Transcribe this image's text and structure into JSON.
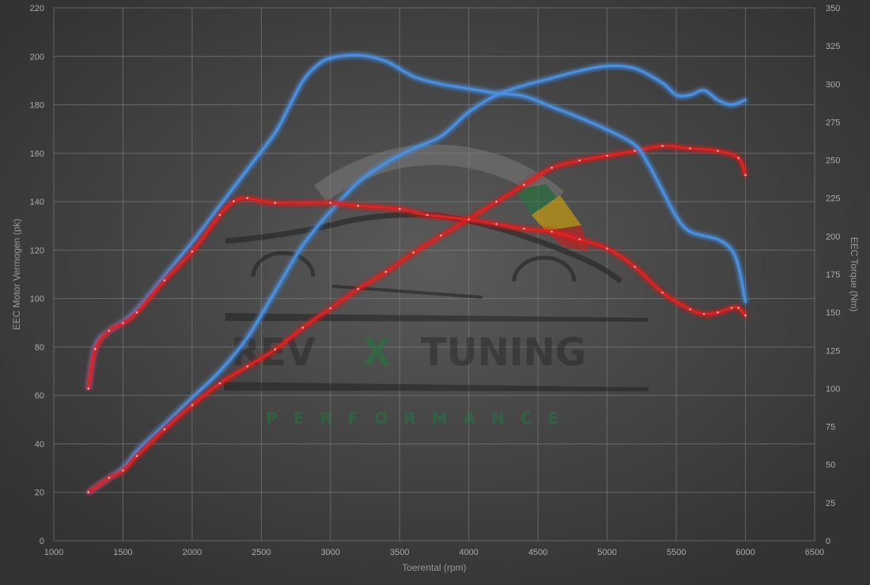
{
  "chart_data": {
    "type": "line",
    "xlabel": "Toerental (rpm)",
    "ylabel_left": "EEC Motor Vermogen (pk)",
    "ylabel_right": "EEC Torque (Nm)",
    "xlim": [
      1000,
      6500
    ],
    "ylim_left": [
      0,
      220
    ],
    "ylim_right": [
      0,
      350
    ],
    "x_ticks": [
      "1000",
      "1500",
      "2000",
      "2500",
      "3000",
      "3500",
      "4000",
      "4500",
      "5000",
      "5500",
      "6000",
      "6500"
    ],
    "y_left_ticks": [
      "0",
      "20",
      "40",
      "60",
      "80",
      "100",
      "120",
      "140",
      "160",
      "180",
      "200",
      "220"
    ],
    "y_right_ticks": [
      "0",
      "25",
      "50",
      "75",
      "100",
      "125",
      "150",
      "175",
      "200",
      "225",
      "250",
      "275",
      "300",
      "325",
      "350"
    ],
    "grid": true,
    "series": [
      {
        "color": "#4a90e2",
        "axis": "left",
        "kind": "power",
        "points": [
          [
            1250,
            20
          ],
          [
            1400,
            26
          ],
          [
            1500,
            30
          ],
          [
            1600,
            37
          ],
          [
            1800,
            48
          ],
          [
            2000,
            59
          ],
          [
            2200,
            70
          ],
          [
            2400,
            84
          ],
          [
            2600,
            103
          ],
          [
            2800,
            122
          ],
          [
            3000,
            136
          ],
          [
            3200,
            148
          ],
          [
            3400,
            156
          ],
          [
            3600,
            162
          ],
          [
            3800,
            167
          ],
          [
            4000,
            177
          ],
          [
            4200,
            184
          ],
          [
            4400,
            188
          ],
          [
            4600,
            191
          ],
          [
            4800,
            194
          ],
          [
            5000,
            196
          ],
          [
            5200,
            195
          ],
          [
            5400,
            189
          ],
          [
            5500,
            184
          ],
          [
            5600,
            184
          ],
          [
            5700,
            186
          ],
          [
            5800,
            182
          ],
          [
            5900,
            180
          ],
          [
            6000,
            182
          ]
        ]
      },
      {
        "color": "#e02020",
        "axis": "left",
        "kind": "power",
        "points": [
          [
            1250,
            20
          ],
          [
            1400,
            26
          ],
          [
            1500,
            29
          ],
          [
            1600,
            35
          ],
          [
            1800,
            46
          ],
          [
            2000,
            56
          ],
          [
            2200,
            65
          ],
          [
            2400,
            72
          ],
          [
            2600,
            79
          ],
          [
            2800,
            88
          ],
          [
            3000,
            96
          ],
          [
            3200,
            104
          ],
          [
            3400,
            111
          ],
          [
            3600,
            119
          ],
          [
            3800,
            126
          ],
          [
            4000,
            133
          ],
          [
            4200,
            140
          ],
          [
            4400,
            147
          ],
          [
            4600,
            154
          ],
          [
            4800,
            157
          ],
          [
            5000,
            159
          ],
          [
            5200,
            161
          ],
          [
            5400,
            163
          ],
          [
            5600,
            162
          ],
          [
            5800,
            161
          ],
          [
            5950,
            158
          ],
          [
            6000,
            151
          ]
        ]
      },
      {
        "color": "#4a90e2",
        "axis": "right",
        "kind": "torque",
        "points": [
          [
            1250,
            100
          ],
          [
            1300,
            128
          ],
          [
            1400,
            138
          ],
          [
            1500,
            144
          ],
          [
            1600,
            152
          ],
          [
            1800,
            174
          ],
          [
            2000,
            196
          ],
          [
            2200,
            220
          ],
          [
            2400,
            244
          ],
          [
            2600,
            268
          ],
          [
            2700,
            285
          ],
          [
            2800,
            302
          ],
          [
            2900,
            312
          ],
          [
            3000,
            317
          ],
          [
            3200,
            319
          ],
          [
            3400,
            315
          ],
          [
            3600,
            305
          ],
          [
            3800,
            300
          ],
          [
            4000,
            297
          ],
          [
            4200,
            294
          ],
          [
            4400,
            292
          ],
          [
            4600,
            285
          ],
          [
            4800,
            278
          ],
          [
            5000,
            270
          ],
          [
            5200,
            260
          ],
          [
            5300,
            247
          ],
          [
            5400,
            230
          ],
          [
            5500,
            213
          ],
          [
            5600,
            203
          ],
          [
            5800,
            198
          ],
          [
            5900,
            191
          ],
          [
            5950,
            180
          ],
          [
            6000,
            157
          ]
        ]
      },
      {
        "color": "#e02020",
        "axis": "right",
        "kind": "torque",
        "points": [
          [
            1250,
            100
          ],
          [
            1300,
            126
          ],
          [
            1400,
            138
          ],
          [
            1500,
            143
          ],
          [
            1600,
            150
          ],
          [
            1800,
            171
          ],
          [
            2000,
            190
          ],
          [
            2200,
            214
          ],
          [
            2300,
            223
          ],
          [
            2400,
            225
          ],
          [
            2600,
            222
          ],
          [
            3000,
            222
          ],
          [
            3200,
            220
          ],
          [
            3500,
            218
          ],
          [
            3700,
            214
          ],
          [
            4000,
            211
          ],
          [
            4200,
            208
          ],
          [
            4400,
            205
          ],
          [
            4600,
            203
          ],
          [
            4800,
            198
          ],
          [
            5000,
            192
          ],
          [
            5200,
            180
          ],
          [
            5400,
            163
          ],
          [
            5600,
            152
          ],
          [
            5700,
            149
          ],
          [
            5800,
            150
          ],
          [
            5900,
            153
          ],
          [
            5950,
            153
          ],
          [
            6000,
            148
          ]
        ]
      }
    ]
  },
  "watermark": {
    "brand_left": "REV",
    "brand_mid": "X",
    "brand_right": "TUNING",
    "tagline": "PERFORMANCE",
    "colors": {
      "accent": "#1e7a3a",
      "text": "#2b2b2b",
      "gauge": "#7a7a7a",
      "yellow": "#e8b000",
      "red": "#d81a1a"
    }
  }
}
